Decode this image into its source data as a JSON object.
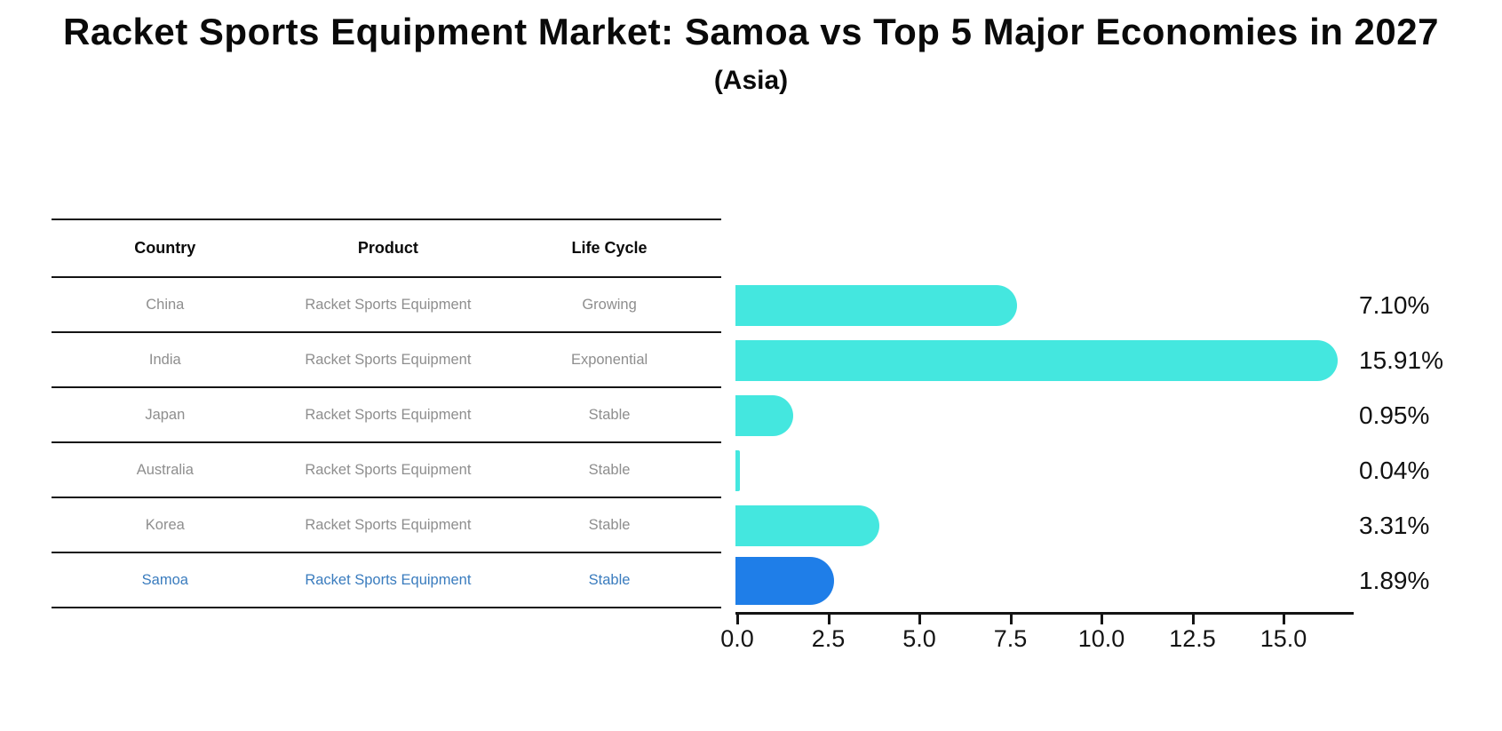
{
  "title": "Racket Sports Equipment Market: Samoa vs Top 5 Major Economies in 2027",
  "subtitle": "(Asia)",
  "table": {
    "headers": [
      "Country",
      "Product",
      "Life Cycle"
    ],
    "rows": [
      {
        "country": "China",
        "product": "Racket Sports Equipment",
        "life_cycle": "Growing",
        "highlight": false
      },
      {
        "country": "India",
        "product": "Racket Sports Equipment",
        "life_cycle": "Exponential",
        "highlight": false
      },
      {
        "country": "Japan",
        "product": "Racket Sports Equipment",
        "life_cycle": "Stable",
        "highlight": false
      },
      {
        "country": "Australia",
        "product": "Racket Sports Equipment",
        "life_cycle": "Stable",
        "highlight": false
      },
      {
        "country": "Korea",
        "product": "Racket Sports Equipment",
        "life_cycle": "Stable",
        "highlight": false
      },
      {
        "country": "Samoa",
        "product": "Racket Sports Equipment",
        "life_cycle": "Stable",
        "highlight": true
      }
    ]
  },
  "chart_data": {
    "type": "bar",
    "orientation": "horizontal",
    "title": "Racket Sports Equipment Market: Samoa vs Top 5 Major Economies in 2027 (Asia)",
    "categories": [
      "China",
      "India",
      "Japan",
      "Australia",
      "Korea",
      "Samoa"
    ],
    "values": [
      7.1,
      15.91,
      0.95,
      0.04,
      3.31,
      1.89
    ],
    "value_labels": [
      "7.10%",
      "15.91%",
      "0.95%",
      "0.04%",
      "3.31%",
      "1.89%"
    ],
    "xlabel": "",
    "ylabel": "",
    "xlim": [
      0,
      17
    ],
    "x_ticks": [
      0,
      2.5,
      5,
      7.5,
      10,
      12.5,
      15
    ],
    "x_tick_labels": [
      "0.0",
      "2.5",
      "5.0",
      "7.5",
      "10.0",
      "12.5",
      "15.0"
    ],
    "grid": false,
    "legend": false,
    "bar_color": "#44E7DF",
    "highlight_index": 5,
    "highlight_color": "#1F7EE8",
    "highlight_edge_style": "dotted",
    "highlight_text_color": "#3A7CBE"
  },
  "colors": {
    "muted_text": "#8E8E8E",
    "axis": "#141414",
    "title_text": "#0A0A0A"
  }
}
